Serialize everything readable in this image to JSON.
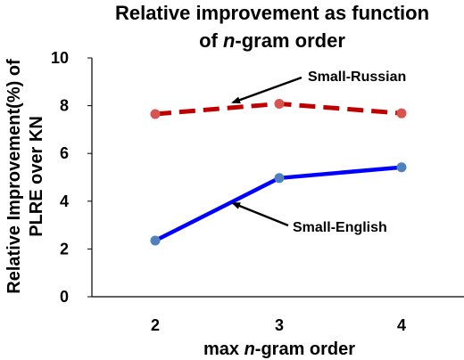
{
  "chart_data": {
    "type": "line",
    "title_line1": "Relative improvement as function",
    "title_line2_pre": "of ",
    "title_line2_italic": "n",
    "title_line2_post": "-gram order",
    "xlabel_pre": "max ",
    "xlabel_italic": "n",
    "xlabel_post": "-gram order",
    "ylabel_line1": "Relative Improvement(%) of",
    "ylabel_line2": "PLRE over KN",
    "x": [
      2,
      3,
      4
    ],
    "xticks": [
      "2",
      "3",
      "4"
    ],
    "ylim": [
      0,
      10
    ],
    "yticks": [
      "0",
      "2",
      "4",
      "6",
      "8",
      "10"
    ],
    "grid": false,
    "series": [
      {
        "name": "Small-Russian",
        "values": [
          7.65,
          8.08,
          7.68
        ],
        "color": "#c00000",
        "style": "dashed"
      },
      {
        "name": "Small-English",
        "values": [
          2.35,
          4.97,
          5.42
        ],
        "color": "#0000ff",
        "style": "solid"
      }
    ],
    "colors": {
      "marker": "#4f81bd",
      "axis": "#000000"
    }
  }
}
